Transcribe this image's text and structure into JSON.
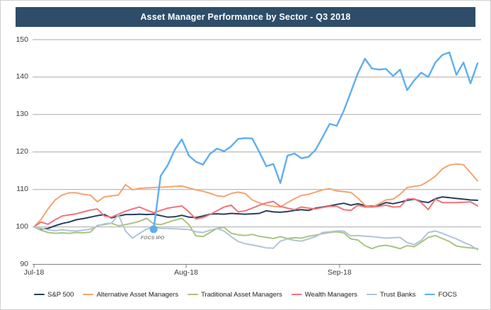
{
  "title": "Asset Manager Performance by Sector - Q3 2018",
  "annotation": {
    "label": "FOCS IPO",
    "series": "FOCS",
    "day": 17,
    "value": 99.4
  },
  "colors": {
    "title_bar_bg": "#2e4d68",
    "title_text": "#ffffff",
    "gridline": "#a9a9a9",
    "axis_line": "#808080",
    "sp500": "#24405c",
    "alternative": "#f5a470",
    "traditional": "#abc37e",
    "wealth": "#f2737b",
    "trust_banks": "#b0c4d8",
    "focs": "#5faef0"
  },
  "chart_data": {
    "type": "line",
    "title": "Asset Manager Performance by Sector - Q3 2018",
    "xlabel": "",
    "ylabel": "",
    "ylim": [
      90,
      150
    ],
    "y_ticks": [
      90,
      100,
      110,
      120,
      130,
      140,
      150
    ],
    "grid": true,
    "legend_position": "bottom",
    "x_unit": "trading-day index, Jul 2 2018 = 0 through Sep 28 2018 = 63",
    "x_tick_labels": [
      "Jul-18",
      "Aug-18",
      "Sep-18"
    ],
    "x_tick_days": [
      0,
      21.6,
      43.4
    ],
    "series": [
      {
        "name": "S&P 500",
        "color": "#24405c",
        "values": [
          100,
          99.4,
          99.6,
          100.3,
          100.9,
          101.3,
          101.9,
          102.2,
          102.6,
          103.0,
          103.3,
          102.4,
          102.9,
          103.3,
          103.3,
          103.4,
          103.3,
          103.4,
          103.0,
          102.6,
          102.7,
          103.1,
          102.6,
          102.5,
          102.9,
          103.4,
          103.5,
          103.4,
          103.6,
          103.5,
          103.4,
          103.5,
          103.6,
          104.3,
          104.0,
          103.9,
          104.1,
          104.4,
          104.6,
          104.4,
          105.0,
          105.3,
          105.6,
          106.0,
          106.3,
          105.8,
          106.2,
          105.7,
          105.5,
          105.8,
          106.5,
          106.2,
          106.6,
          107.1,
          107.4,
          106.8,
          106.5,
          107.5,
          108.0,
          107.8,
          107.6,
          107.4,
          107.2,
          107.1
        ]
      },
      {
        "name": "Alternative Asset Managers",
        "color": "#f5a470",
        "values": [
          100,
          102.0,
          104.8,
          107.2,
          108.5,
          109.1,
          109.1,
          108.7,
          108.5,
          106.7,
          108.0,
          108.3,
          108.5,
          111.3,
          109.9,
          110.3,
          110.4,
          110.5,
          110.6,
          110.7,
          110.8,
          110.9,
          110.4,
          109.9,
          109.5,
          109.0,
          108.3,
          108.1,
          108.9,
          109.3,
          108.9,
          107.2,
          106.4,
          105.8,
          105.5,
          105.3,
          106.5,
          107.5,
          108.4,
          108.7,
          109.3,
          109.9,
          110.2,
          109.6,
          109.4,
          109.2,
          107.7,
          105.8,
          105.3,
          106.2,
          107.2,
          107.4,
          108.7,
          110.5,
          110.8,
          111.1,
          112.2,
          113.5,
          115.5,
          116.5,
          116.8,
          116.6,
          114.5,
          112.3
        ]
      },
      {
        "name": "Traditional Asset Managers",
        "color": "#abc37e",
        "values": [
          100,
          99.1,
          98.5,
          98.3,
          98.4,
          98.3,
          98.5,
          98.4,
          98.6,
          100.4,
          100.6,
          101.0,
          100.3,
          100.6,
          101.0,
          101.5,
          102.3,
          100.8,
          100.6,
          101.2,
          101.8,
          102.3,
          100.6,
          97.6,
          97.4,
          98.5,
          99.6,
          99.9,
          98.3,
          97.9,
          97.7,
          98.0,
          97.5,
          97.2,
          96.9,
          97.4,
          96.9,
          97.1,
          97.0,
          97.5,
          97.8,
          98.2,
          98.5,
          98.7,
          98.4,
          96.8,
          96.5,
          95.0,
          94.2,
          94.9,
          95.1,
          94.7,
          94.2,
          95.0,
          94.7,
          95.9,
          97.2,
          97.7,
          96.9,
          96.1,
          94.9,
          94.6,
          94.4,
          94.2
        ]
      },
      {
        "name": "Wealth Managers",
        "color": "#f2737b",
        "values": [
          100,
          101.3,
          100.7,
          101.9,
          102.9,
          103.2,
          103.5,
          104.0,
          104.5,
          104.8,
          102.9,
          102.6,
          103.4,
          104.2,
          104.8,
          105.3,
          104.5,
          103.8,
          104.4,
          105.0,
          105.3,
          105.6,
          104.0,
          102.1,
          102.5,
          103.3,
          104.3,
          105.3,
          105.8,
          104.0,
          104.3,
          105.0,
          105.8,
          106.4,
          106.8,
          105.5,
          105.0,
          104.6,
          105.3,
          105.0,
          104.8,
          105.2,
          105.5,
          105.5,
          104.6,
          104.4,
          105.8,
          105.3,
          105.3,
          105.5,
          105.8,
          105.3,
          105.4,
          107.4,
          107.5,
          106.5,
          104.6,
          107.4,
          106.5,
          106.5,
          106.5,
          106.6,
          106.7,
          105.6
        ]
      },
      {
        "name": "Trust Banks",
        "color": "#b0c4d8",
        "values": [
          100,
          99.6,
          99.2,
          99.0,
          99.2,
          99.0,
          98.9,
          99.1,
          99.4,
          100.2,
          100.8,
          101.0,
          103.2,
          98.9,
          97.0,
          98.3,
          99.4,
          100.0,
          99.6,
          99.6,
          99.5,
          99.4,
          99.3,
          98.7,
          98.5,
          99.1,
          99.6,
          98.9,
          97.4,
          96.1,
          95.5,
          95.2,
          94.8,
          94.4,
          94.3,
          96.2,
          96.8,
          96.4,
          96.2,
          96.8,
          97.4,
          98.5,
          98.7,
          98.9,
          98.9,
          97.6,
          97.7,
          97.5,
          97.4,
          97.2,
          97.0,
          97.1,
          97.2,
          95.8,
          95.3,
          96.4,
          98.5,
          98.9,
          98.3,
          97.5,
          96.8,
          95.9,
          95.1,
          93.9
        ]
      },
      {
        "name": "FOCS",
        "color": "#5faef0",
        "values": [
          null,
          null,
          null,
          null,
          null,
          null,
          null,
          null,
          null,
          null,
          null,
          null,
          null,
          null,
          null,
          null,
          null,
          99.4,
          113.6,
          116.5,
          120.6,
          123.4,
          119.0,
          117.4,
          116.6,
          119.5,
          120.9,
          120.2,
          121.5,
          123.5,
          123.7,
          123.6,
          120.0,
          116.2,
          116.8,
          111.7,
          119.0,
          119.6,
          118.3,
          118.7,
          120.6,
          124.0,
          127.5,
          127.0,
          131.0,
          136.0,
          141.0,
          144.9,
          142.3,
          142.0,
          142.2,
          140.3,
          142.0,
          136.5,
          139.1,
          141.2,
          140.0,
          143.9,
          145.9,
          146.6,
          140.6,
          143.9,
          138.3,
          143.7
        ]
      }
    ]
  }
}
